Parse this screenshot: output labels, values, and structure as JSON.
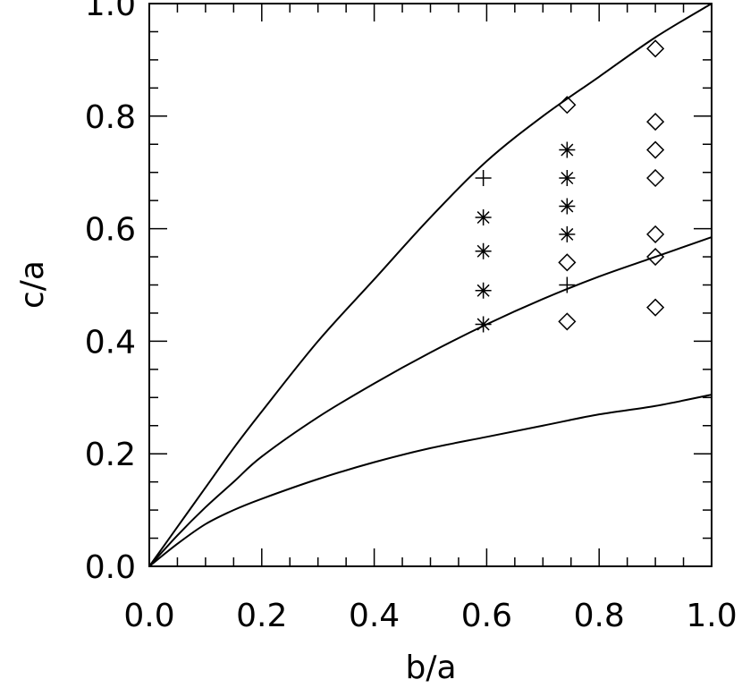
{
  "chart_data": {
    "type": "scatter",
    "title": "",
    "xlabel": "b/a",
    "ylabel": "c/a",
    "xlim": [
      0.0,
      1.0
    ],
    "ylim": [
      0.0,
      1.0
    ],
    "grid": false,
    "legend": "none",
    "x_ticks": [
      "0.0",
      "0.2",
      "0.4",
      "0.6",
      "0.8",
      "1.0"
    ],
    "y_ticks": [
      "0.0",
      "0.2",
      "0.4",
      "0.6",
      "0.8",
      "1.0"
    ],
    "x_tick_values": [
      0.0,
      0.2,
      0.4,
      0.6,
      0.8,
      1.0
    ],
    "y_tick_values": [
      0.0,
      0.2,
      0.4,
      0.6,
      0.8,
      1.0
    ],
    "curves": [
      {
        "x": [
          0.0,
          0.05,
          0.1,
          0.15,
          0.2,
          0.3,
          0.4,
          0.5,
          0.6,
          0.7,
          0.8,
          0.9,
          1.0
        ],
        "y": [
          0.0,
          0.07,
          0.14,
          0.21,
          0.275,
          0.4,
          0.51,
          0.62,
          0.72,
          0.8,
          0.87,
          0.94,
          1.0
        ]
      },
      {
        "x": [
          0.0,
          0.05,
          0.1,
          0.15,
          0.2,
          0.3,
          0.4,
          0.5,
          0.6,
          0.7,
          0.8,
          0.9,
          1.0
        ],
        "y": [
          0.0,
          0.055,
          0.105,
          0.15,
          0.195,
          0.265,
          0.325,
          0.38,
          0.43,
          0.475,
          0.515,
          0.55,
          0.585
        ]
      },
      {
        "x": [
          0.0,
          0.05,
          0.1,
          0.15,
          0.2,
          0.3,
          0.4,
          0.5,
          0.6,
          0.7,
          0.8,
          0.9,
          1.0
        ],
        "y": [
          0.0,
          0.04,
          0.075,
          0.1,
          0.12,
          0.155,
          0.185,
          0.21,
          0.23,
          0.25,
          0.27,
          0.285,
          0.305
        ]
      }
    ],
    "series": [
      {
        "marker": "plus",
        "x": [
          0.594,
          0.743
        ],
        "y": [
          0.69,
          0.5
        ]
      },
      {
        "marker": "asterisk",
        "x": [
          0.594,
          0.594,
          0.594,
          0.594,
          0.743,
          0.743,
          0.743,
          0.743
        ],
        "y": [
          0.62,
          0.56,
          0.49,
          0.43,
          0.74,
          0.69,
          0.64,
          0.59
        ]
      },
      {
        "marker": "diamond",
        "x": [
          0.743,
          0.743,
          0.743,
          0.9,
          0.9,
          0.9,
          0.9,
          0.9,
          0.9,
          0.9
        ],
        "y": [
          0.82,
          0.54,
          0.435,
          0.92,
          0.79,
          0.74,
          0.69,
          0.59,
          0.55,
          0.46
        ]
      }
    ]
  }
}
